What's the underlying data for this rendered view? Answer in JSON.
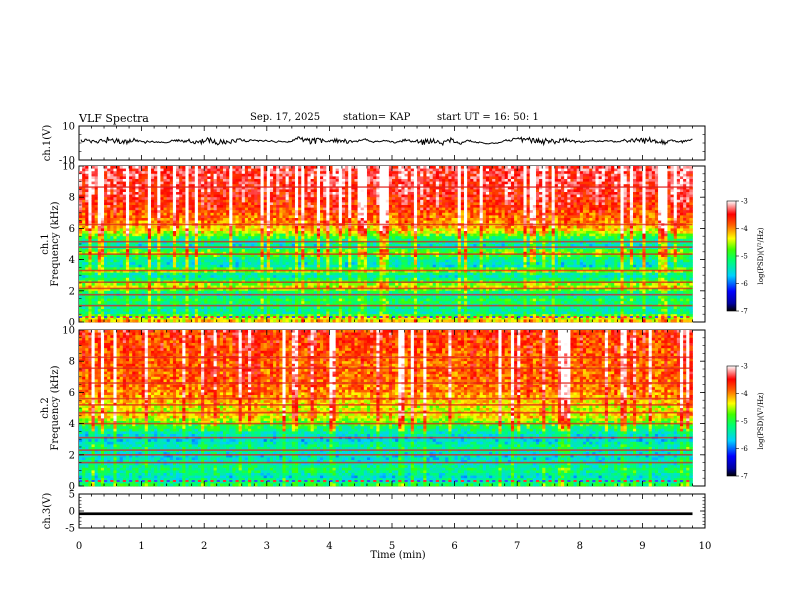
{
  "chart_data": {
    "type": "heatmap",
    "header": {
      "title": "VLF Spectra",
      "date": "Sep. 17, 2025",
      "station": "station= KAP",
      "start": "start  UT =   16: 50: 1"
    },
    "xlabel": "Time  (min)",
    "xlim": [
      0,
      10
    ],
    "xticks": [
      "0",
      "1",
      "2",
      "3",
      "4",
      "5",
      "6",
      "7",
      "8",
      "9",
      "10"
    ],
    "data_end_min": 9.8,
    "panels": [
      {
        "id": "ch1_waveform",
        "type": "line",
        "ylabel": "ch.1(V)",
        "ylim": [
          -10,
          10
        ],
        "yticks": [
          "10",
          "-10"
        ],
        "baseline_v": 1.3,
        "amplitude_v": 3.5
      },
      {
        "id": "ch1_spectrogram",
        "type": "heatmap",
        "ylabel_line1": "ch.1",
        "ylabel_line2": "Frequency  (kHz)",
        "ylim": [
          0,
          10
        ],
        "yticks": [
          "0",
          "2",
          "4",
          "6",
          "8",
          "10"
        ],
        "profile": [
          [
            0.0,
            -4.2
          ],
          [
            0.3,
            -4.6
          ],
          [
            0.6,
            -5.4
          ],
          [
            1.0,
            -5.3
          ],
          [
            1.4,
            -5.1
          ],
          [
            1.8,
            -5.5
          ],
          [
            2.2,
            -4.4
          ],
          [
            2.5,
            -4.8
          ],
          [
            3.0,
            -5.6
          ],
          [
            3.3,
            -4.5
          ],
          [
            3.6,
            -5.6
          ],
          [
            4.0,
            -5.4
          ],
          [
            4.5,
            -4.6
          ],
          [
            4.8,
            -5.6
          ],
          [
            5.3,
            -5.3
          ],
          [
            5.8,
            -4.4
          ],
          [
            6.5,
            -4.0
          ],
          [
            7.5,
            -3.7
          ],
          [
            8.5,
            -3.5
          ],
          [
            10.0,
            -3.4
          ]
        ],
        "horizontal_lines_khz": [
          1.05,
          1.75,
          2.15,
          2.55,
          3.3,
          4.35,
          4.8,
          5.15,
          6.25,
          8.65
        ],
        "colorbar": {
          "label": "log(PSD)(V²/Hz)",
          "range": [
            -7,
            -3
          ],
          "ticks": [
            "-3",
            "-4",
            "-5",
            "-6",
            "-7"
          ]
        }
      },
      {
        "id": "ch2_spectrogram",
        "type": "heatmap",
        "ylabel_line1": "ch.2",
        "ylabel_line2": "Frequency  (kHz)",
        "ylim": [
          0,
          10
        ],
        "yticks": [
          "0",
          "2",
          "4",
          "6",
          "8",
          "10"
        ],
        "profile": [
          [
            0.0,
            -5.0
          ],
          [
            0.3,
            -5.3
          ],
          [
            0.6,
            -5.6
          ],
          [
            1.0,
            -5.2
          ],
          [
            1.5,
            -5.5
          ],
          [
            2.0,
            -5.6
          ],
          [
            2.5,
            -5.3
          ],
          [
            3.0,
            -5.7
          ],
          [
            3.5,
            -5.4
          ],
          [
            4.0,
            -4.9
          ],
          [
            4.5,
            -4.3
          ],
          [
            5.0,
            -4.5
          ],
          [
            5.5,
            -4.2
          ],
          [
            6.0,
            -4.0
          ],
          [
            7.0,
            -3.9
          ],
          [
            8.0,
            -3.9
          ],
          [
            9.0,
            -3.8
          ],
          [
            10.0,
            -3.7
          ]
        ],
        "horizontal_lines_khz": [
          1.5,
          2.0,
          2.3,
          3.1,
          4.0,
          4.7,
          5.2,
          5.6,
          6.6,
          7.55,
          8.25
        ],
        "colorbar": {
          "label": "log(PSD)(V²/Hz)",
          "range": [
            -7,
            -3
          ],
          "ticks": [
            "-3",
            "-4",
            "-5",
            "-6",
            "-7"
          ]
        }
      },
      {
        "id": "ch3_waveform",
        "type": "line",
        "ylabel": "ch.3(V)",
        "ylim": [
          -5,
          5
        ],
        "yticks": [
          "5",
          "0",
          "-5"
        ],
        "level_v": -0.8,
        "band_halfwidth_v": 0.4
      }
    ]
  }
}
